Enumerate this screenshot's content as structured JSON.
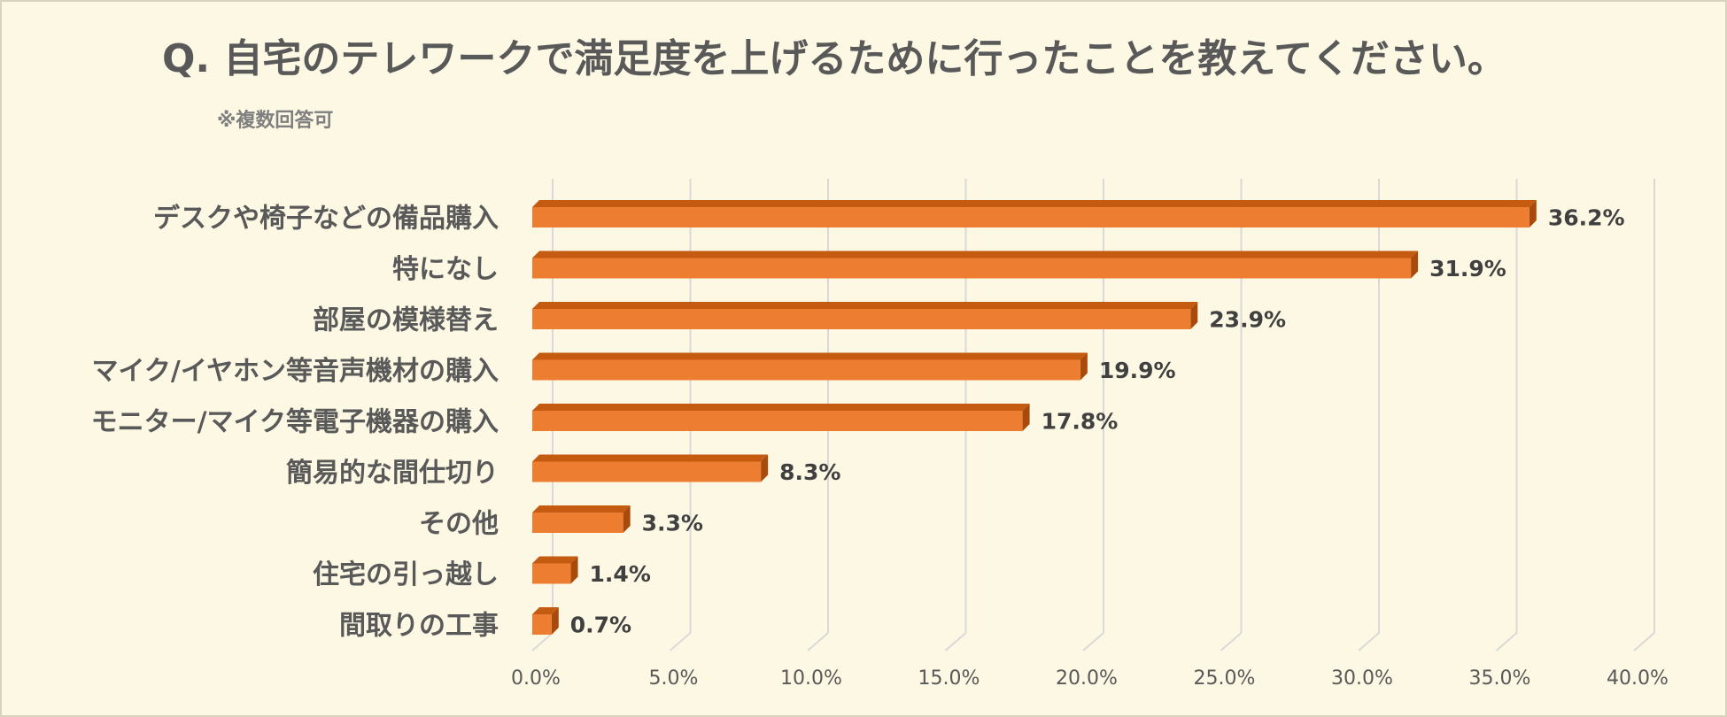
{
  "chart_data": {
    "type": "bar",
    "orientation": "horizontal",
    "title": "Q. 自宅のテレワークで満足度を上げるために行ったことを教えてください。",
    "subtitle": "※複数回答可",
    "xlabel": "",
    "ylabel": "",
    "xlim": [
      0,
      40
    ],
    "xticks": [
      "0.0%",
      "5.0%",
      "10.0%",
      "15.0%",
      "20.0%",
      "25.0%",
      "30.0%",
      "35.0%",
      "40.0%"
    ],
    "grid": true,
    "legend": "none",
    "categories": [
      "デスクや椅子などの備品購入",
      "特になし",
      "部屋の模様替え",
      "マイク/イヤホン等音声機材の購入",
      "モニター/マイク等電子機器の購入",
      "簡易的な間仕切り",
      "その他",
      "住宅の引っ越し",
      "間取りの工事"
    ],
    "values": [
      36.2,
      31.9,
      23.9,
      19.9,
      17.8,
      8.3,
      3.3,
      1.4,
      0.7
    ],
    "value_labels": [
      "36.2%",
      "31.9%",
      "23.9%",
      "19.9%",
      "17.8%",
      "8.3%",
      "3.3%",
      "1.4%",
      "0.7%"
    ],
    "colors": {
      "bar_front": "#ed7d31",
      "bar_top": "#c55a11",
      "bar_side": "#a84a0c",
      "background": "#fdf8e4",
      "gridline": "#d9d9d9"
    }
  }
}
